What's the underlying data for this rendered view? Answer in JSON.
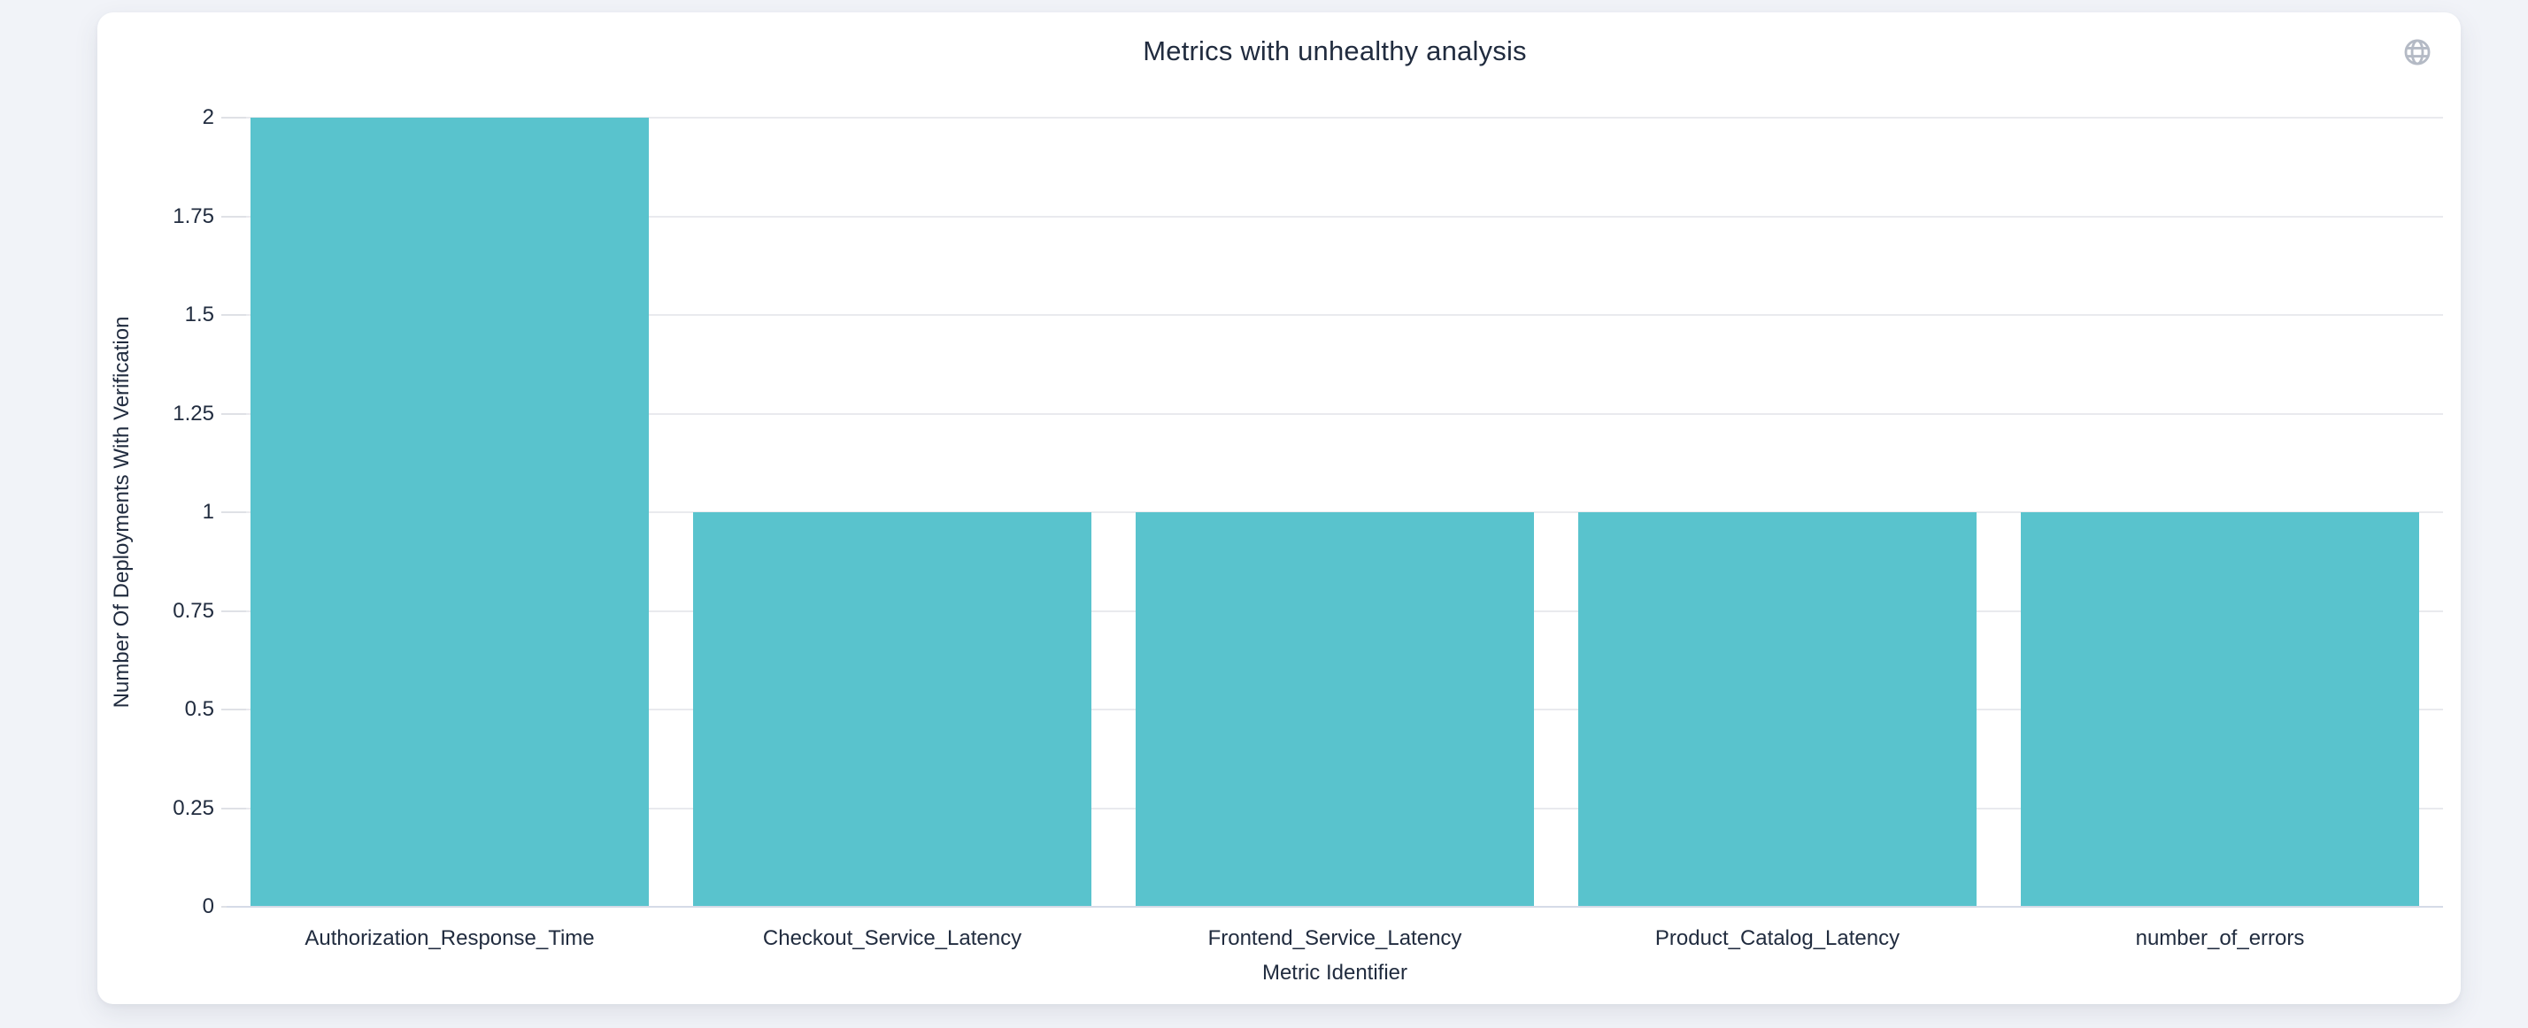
{
  "header": {
    "globe_icon": "globe-icon"
  },
  "colors": {
    "page_background": "#f1f3f8",
    "card_background": "#ffffff",
    "text": "#212c3f",
    "bar": "#59c3cd",
    "gridline": "#e9eaee",
    "baseline": "#d5dbe7",
    "tick": "#dfe1e6",
    "globe_icon": "#b4bac5"
  },
  "chart_data": {
    "type": "bar",
    "title": "Metrics with unhealthy analysis",
    "categories": [
      "Authorization_Response_Time",
      "Checkout_Service_Latency",
      "Frontend_Service_Latency",
      "Product_Catalog_Latency",
      "number_of_errors"
    ],
    "values": [
      2,
      1,
      1,
      1,
      1
    ],
    "xlabel": "Metric Identifier",
    "ylabel": "Number Of Deployments With Verification",
    "ylim": [
      0,
      2
    ],
    "yticks": [
      0,
      0.25,
      0.5,
      0.75,
      1,
      1.25,
      1.5,
      1.75,
      2
    ],
    "ytick_labels": [
      "0",
      "0.25",
      "0.5",
      "0.75",
      "1",
      "1.25",
      "1.5",
      "1.75",
      "2"
    ],
    "grid": true,
    "legend": false
  }
}
